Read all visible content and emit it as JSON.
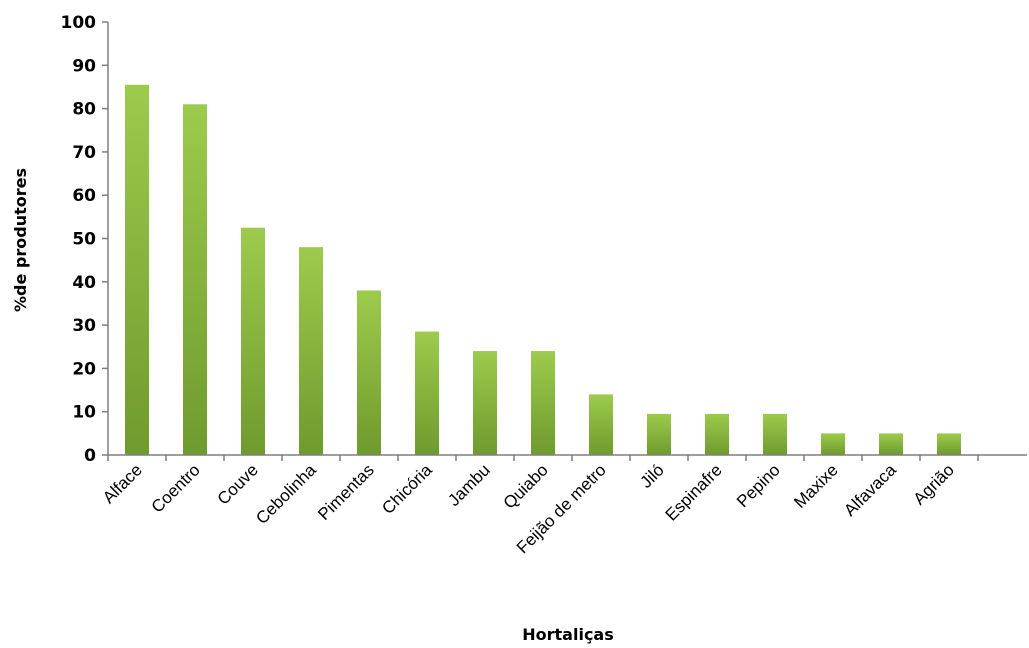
{
  "chart_data": {
    "type": "bar",
    "title": "",
    "xlabel": "Hortaliças",
    "ylabel": "%de produtores",
    "categories": [
      "Alface",
      "Coentro",
      "Couve",
      "Cebolinha",
      "Pimentas",
      "Chicória",
      "Jambu",
      "Quiabo",
      "Feijão de metro",
      "Jiló",
      "Espinafre",
      "Pepino",
      "Maxixe",
      "Alfavaca",
      "Agrião"
    ],
    "values": [
      85.5,
      81,
      52.5,
      48,
      38,
      28.5,
      24,
      24,
      14,
      9.5,
      9.5,
      9.5,
      5,
      5,
      5
    ],
    "ylim": [
      0,
      100
    ],
    "yticks": [
      0,
      10,
      20,
      30,
      40,
      50,
      60,
      70,
      80,
      90,
      100
    ],
    "grid": false,
    "legend": "none",
    "colors": {
      "bar_light": "#9dcb4c",
      "bar_dark": "#6f9a2e",
      "axis": "#7f7f7f"
    }
  }
}
